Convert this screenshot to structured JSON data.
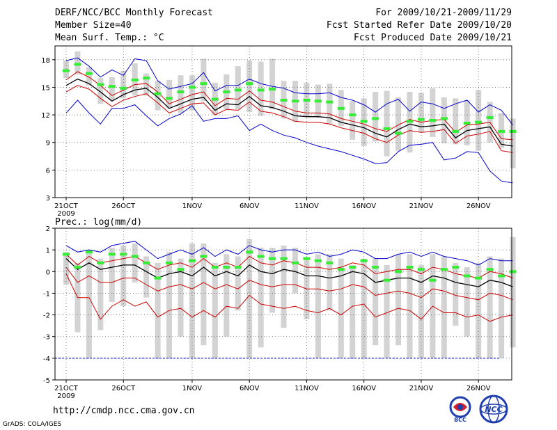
{
  "header": {
    "title": "DERF/NCC/BCC Monthly Forecast",
    "member_size": "Member Size=40",
    "variable": "Mean Surf. Temp.: °C",
    "forecast_range": "For 2009/10/21-2009/11/29",
    "start_date": "Fcst Started Refer Date 2009/10/20",
    "produced_date": "Fcst Produced Date 2009/10/21"
  },
  "footer": {
    "url": "http://cmdp.ncc.cma.gov.cn",
    "grads_credit": "GrADS: COLA/IGES",
    "logo_left_text": "BCC",
    "logo_right_text": "NCC"
  },
  "colors": {
    "blue": "#0000cc",
    "red": "#cc0000",
    "mean": "#000000",
    "green": "#33ee33",
    "bar": "#d3d3d3",
    "grid": "#666666"
  },
  "chart_data": [
    {
      "type": "line",
      "title": "Mean Surf. Temp.: °C",
      "ylim": [
        3,
        19.5
      ],
      "yticks": [
        3,
        6,
        9,
        12,
        15,
        18
      ],
      "xticks": [
        {
          "day": 0,
          "label": "21OCT",
          "sub": "2009"
        },
        {
          "day": 5,
          "label": "26OCT"
        },
        {
          "day": 11,
          "label": "1NOV"
        },
        {
          "day": 16,
          "label": "6NOV"
        },
        {
          "day": 21,
          "label": "11NOV"
        },
        {
          "day": 26,
          "label": "16NOV"
        },
        {
          "day": 31,
          "label": "21NOV"
        },
        {
          "day": 36,
          "label": "26NOV"
        }
      ],
      "x_days": [
        0,
        1,
        2,
        3,
        4,
        5,
        6,
        7,
        8,
        9,
        10,
        11,
        12,
        13,
        14,
        15,
        16,
        17,
        18,
        19,
        20,
        21,
        22,
        23,
        24,
        25,
        26,
        27,
        28,
        29,
        30,
        31,
        32,
        33,
        34,
        35,
        36,
        37,
        38,
        39
      ],
      "series": [
        {
          "name": "max",
          "color": "blue",
          "values": [
            17.9,
            18.2,
            17.3,
            16.1,
            16.9,
            16.3,
            18.1,
            17.9,
            15.7,
            14.8,
            15.1,
            15.4,
            16.6,
            14.6,
            15.2,
            15.2,
            15.9,
            15.4,
            15.1,
            14.9,
            14.4,
            14.3,
            14.3,
            14.4,
            13.9,
            13.6,
            13.1,
            12.3,
            13.2,
            13.7,
            12.4,
            13.4,
            13.2,
            12.7,
            13.2,
            13.6,
            12.3,
            13.1,
            12.5,
            10.9
          ]
        },
        {
          "name": "upper",
          "color": "red",
          "values": [
            15.8,
            16.7,
            16.1,
            15.2,
            14.1,
            14.7,
            15.3,
            15.4,
            14.5,
            13.2,
            13.7,
            14.2,
            14.5,
            13.0,
            13.8,
            13.7,
            14.6,
            13.6,
            13.4,
            12.9,
            12.4,
            12.2,
            12.2,
            12.1,
            11.6,
            11.3,
            11.0,
            10.5,
            10.2,
            10.9,
            11.5,
            11.2,
            11.4,
            11.5,
            10.1,
            10.9,
            11.0,
            11.2,
            9.4,
            9.3
          ]
        },
        {
          "name": "mean",
          "color": "mean",
          "values": [
            15.2,
            15.9,
            15.4,
            14.5,
            13.5,
            14.2,
            14.7,
            14.9,
            13.9,
            12.7,
            13.2,
            13.7,
            13.9,
            12.5,
            13.2,
            13.1,
            14.0,
            13.0,
            12.8,
            12.4,
            11.9,
            11.8,
            11.8,
            11.7,
            11.2,
            10.9,
            10.6,
            10.0,
            9.6,
            10.4,
            11.0,
            10.7,
            10.8,
            11.0,
            9.5,
            10.3,
            10.5,
            10.7,
            8.8,
            8.6
          ]
        },
        {
          "name": "lower",
          "color": "red",
          "values": [
            14.5,
            15.2,
            14.8,
            13.8,
            12.9,
            13.6,
            14.0,
            14.3,
            13.3,
            12.2,
            12.7,
            13.2,
            13.3,
            12.0,
            12.6,
            12.5,
            13.4,
            12.4,
            12.2,
            11.8,
            11.3,
            11.2,
            11.2,
            11.0,
            10.6,
            10.3,
            10.0,
            9.4,
            9.0,
            9.8,
            10.3,
            10.1,
            10.2,
            10.4,
            8.9,
            9.7,
            9.9,
            10.2,
            8.1,
            7.9
          ]
        },
        {
          "name": "min",
          "color": "blue",
          "values": [
            12.2,
            13.6,
            12.2,
            11.0,
            12.7,
            12.7,
            13.1,
            11.9,
            10.8,
            11.6,
            12.1,
            13.0,
            11.3,
            11.6,
            11.6,
            11.9,
            10.3,
            11.0,
            10.3,
            9.8,
            9.5,
            9.0,
            8.6,
            8.3,
            8.0,
            7.6,
            7.2,
            6.7,
            6.8,
            8.0,
            8.7,
            8.8,
            9.0,
            7.1,
            7.3,
            8.0,
            7.9,
            5.9,
            4.8,
            4.6
          ]
        }
      ],
      "member_bars": [
        [
          16.0,
          17.9
        ],
        [
          16.4,
          18.9
        ],
        [
          15.2,
          17.2
        ],
        [
          13.2,
          16.0
        ],
        [
          13.6,
          16.1
        ],
        [
          13.8,
          16.8
        ],
        [
          14.1,
          17.6
        ],
        [
          14.1,
          16.5
        ],
        [
          12.5,
          15.7
        ],
        [
          12.7,
          15.8
        ],
        [
          12.2,
          16.3
        ],
        [
          12.5,
          16.3
        ],
        [
          13.5,
          18.1
        ],
        [
          12.0,
          15.5
        ],
        [
          12.6,
          16.4
        ],
        [
          12.6,
          17.3
        ],
        [
          12.3,
          17.9
        ],
        [
          11.9,
          17.8
        ],
        [
          12.6,
          18.1
        ],
        [
          11.6,
          15.7
        ],
        [
          11.2,
          15.7
        ],
        [
          11.8,
          15.5
        ],
        [
          11.7,
          15.3
        ],
        [
          11.0,
          15.4
        ],
        [
          10.8,
          14.7
        ],
        [
          9.3,
          13.5
        ],
        [
          8.6,
          13.8
        ],
        [
          9.1,
          14.5
        ],
        [
          7.5,
          14.6
        ],
        [
          8.1,
          13.9
        ],
        [
          7.9,
          14.5
        ],
        [
          10.1,
          14.4
        ],
        [
          9.6,
          14.9
        ],
        [
          8.9,
          13.9
        ],
        [
          8.8,
          13.8
        ],
        [
          8.7,
          13.6
        ],
        [
          8.1,
          14.7
        ],
        [
          9.0,
          13.4
        ],
        [
          8.4,
          12.2
        ],
        [
          6.2,
          11.6
        ]
      ],
      "green_marks": [
        16.8,
        17.5,
        16.5,
        15.3,
        15.1,
        14.9,
        15.8,
        16.0,
        14.3,
        13.8,
        14.5,
        15.0,
        15.4,
        13.7,
        14.5,
        14.7,
        15.4,
        14.7,
        14.8,
        13.6,
        13.5,
        13.6,
        13.5,
        13.4,
        12.7,
        12.0,
        11.3,
        11.6,
        10.5,
        10.0,
        11.3,
        11.5,
        11.4,
        11.6,
        10.2,
        11.1,
        11.2,
        11.7,
        10.2,
        10.2
      ]
    },
    {
      "type": "line",
      "title": "Prec.: log(mm/d)",
      "ylim": [
        -5,
        2
      ],
      "yticks": [
        -5,
        -4,
        -3,
        -2,
        -1,
        0,
        1,
        2
      ],
      "xticks": [
        {
          "day": 0,
          "label": "21OCT",
          "sub": "2009"
        },
        {
          "day": 5,
          "label": "26OCT"
        },
        {
          "day": 11,
          "label": "1NOV"
        },
        {
          "day": 16,
          "label": "6NOV"
        },
        {
          "day": 21,
          "label": "11NOV"
        },
        {
          "day": 26,
          "label": "16NOV"
        },
        {
          "day": 31,
          "label": "21NOV"
        },
        {
          "day": 36,
          "label": "26NOV"
        }
      ],
      "x_days": [
        0,
        1,
        2,
        3,
        4,
        5,
        6,
        7,
        8,
        9,
        10,
        11,
        12,
        13,
        14,
        15,
        16,
        17,
        18,
        19,
        20,
        21,
        22,
        23,
        24,
        25,
        26,
        27,
        28,
        29,
        30,
        31,
        32,
        33,
        34,
        35,
        36,
        37,
        38,
        39
      ],
      "series": [
        {
          "name": "max",
          "color": "blue",
          "values": [
            1.2,
            0.9,
            1.0,
            0.9,
            1.2,
            1.3,
            1.4,
            1.0,
            0.6,
            0.8,
            1.0,
            0.8,
            1.1,
            0.7,
            1.0,
            0.8,
            1.2,
            1.0,
            0.9,
            1.0,
            1.0,
            0.8,
            0.9,
            0.7,
            0.8,
            1.0,
            0.9,
            0.6,
            0.6,
            0.8,
            0.9,
            0.7,
            0.9,
            0.7,
            0.6,
            0.5,
            0.3,
            0.6,
            0.5,
            0.5
          ]
        },
        {
          "name": "upper",
          "color": "red",
          "values": [
            0.8,
            0.3,
            0.7,
            0.4,
            0.5,
            0.6,
            0.7,
            0.4,
            0.1,
            0.3,
            0.4,
            0.2,
            0.6,
            0.2,
            0.4,
            0.2,
            0.7,
            0.4,
            0.3,
            0.5,
            0.4,
            0.2,
            0.2,
            0.1,
            0.2,
            0.4,
            0.3,
            -0.1,
            0.0,
            0.1,
            0.1,
            -0.1,
            0.2,
            0.1,
            -0.1,
            -0.2,
            -0.3,
            0.0,
            -0.1,
            -0.3
          ]
        },
        {
          "name": "mean",
          "color": "mean",
          "values": [
            0.6,
            0.1,
            0.4,
            0.1,
            0.2,
            0.3,
            0.3,
            0.0,
            -0.3,
            -0.1,
            0.0,
            -0.2,
            0.2,
            -0.2,
            0.0,
            -0.2,
            0.3,
            0.0,
            -0.1,
            0.1,
            0.0,
            -0.2,
            -0.2,
            -0.3,
            -0.2,
            0.0,
            -0.1,
            -0.5,
            -0.4,
            -0.3,
            -0.3,
            -0.5,
            -0.2,
            -0.3,
            -0.5,
            -0.6,
            -0.7,
            -0.4,
            -0.5,
            -0.7
          ]
        },
        {
          "name": "lower",
          "color": "red",
          "values": [
            0.2,
            -0.5,
            -0.2,
            -0.5,
            -0.5,
            -0.3,
            -0.3,
            -0.6,
            -0.9,
            -0.7,
            -0.6,
            -0.8,
            -0.5,
            -0.8,
            -0.6,
            -0.8,
            -0.4,
            -0.6,
            -0.7,
            -0.6,
            -0.6,
            -0.8,
            -0.8,
            -0.9,
            -0.8,
            -0.6,
            -0.7,
            -1.1,
            -1.0,
            -0.9,
            -1.0,
            -1.2,
            -0.8,
            -0.9,
            -1.1,
            -1.2,
            -1.3,
            -1.0,
            -1.1,
            -1.3
          ]
        },
        {
          "name": "min",
          "color": "red",
          "values": [
            -0.1,
            -1.2,
            -1.2,
            -2.2,
            -1.6,
            -1.3,
            -1.6,
            -1.4,
            -2.1,
            -1.8,
            -1.7,
            -2.1,
            -1.8,
            -2.1,
            -1.6,
            -1.7,
            -1.1,
            -1.5,
            -1.6,
            -1.7,
            -1.6,
            -1.8,
            -1.9,
            -1.7,
            -2.0,
            -1.6,
            -1.5,
            -2.1,
            -1.9,
            -1.7,
            -1.8,
            -2.2,
            -1.6,
            -1.9,
            -1.9,
            -2.1,
            -2.0,
            -2.3,
            -2.1,
            -2.0
          ]
        }
      ],
      "member_bars": [
        [
          -0.6,
          0.9
        ],
        [
          -2.8,
          0.4
        ],
        [
          -4.0,
          1.0
        ],
        [
          -2.7,
          0.6
        ],
        [
          -1.4,
          1.1
        ],
        [
          -1.6,
          1.2
        ],
        [
          -0.5,
          1.3
        ],
        [
          -1.2,
          0.7
        ],
        [
          -4.0,
          0.4
        ],
        [
          -4.0,
          0.9
        ],
        [
          -3.0,
          0.6
        ],
        [
          -4.0,
          1.3
        ],
        [
          -3.4,
          1.3
        ],
        [
          -4.0,
          0.4
        ],
        [
          -3.0,
          0.8
        ],
        [
          -1.8,
          0.7
        ],
        [
          -4.0,
          1.5
        ],
        [
          -3.5,
          1.1
        ],
        [
          -1.9,
          1.1
        ],
        [
          -2.6,
          1.2
        ],
        [
          -1.0,
          1.1
        ],
        [
          -2.2,
          0.6
        ],
        [
          -4.0,
          0.8
        ],
        [
          -1.8,
          0.8
        ],
        [
          -4.0,
          0.6
        ],
        [
          -4.0,
          0.3
        ],
        [
          -4.0,
          0.6
        ],
        [
          -3.4,
          0.6
        ],
        [
          -4.0,
          0.3
        ],
        [
          -3.4,
          0.8
        ],
        [
          -4.0,
          0.8
        ],
        [
          -4.0,
          0.3
        ],
        [
          -4.0,
          0.8
        ],
        [
          -4.0,
          0.7
        ],
        [
          -2.5,
          0.4
        ],
        [
          -3.0,
          0.2
        ],
        [
          -4.0,
          0.4
        ],
        [
          -4.0,
          0.7
        ],
        [
          -4.0,
          0.6
        ],
        [
          -3.5,
          1.6
        ]
      ],
      "green_marks": [
        0.8,
        0.2,
        0.9,
        0.4,
        0.8,
        0.8,
        0.7,
        0.4,
        -0.3,
        0.4,
        0.1,
        0.5,
        0.7,
        0.2,
        0.2,
        0.2,
        0.9,
        0.7,
        0.6,
        0.6,
        0.4,
        0.6,
        0.5,
        0.4,
        0.1,
        0.2,
        0.5,
        0.2,
        -0.4,
        0.0,
        0.2,
        0.1,
        -0.4,
        0.1,
        0.2,
        -0.2,
        -0.3,
        0.1,
        -0.2,
        0.0
      ],
      "reference_line": -4.0
    }
  ]
}
